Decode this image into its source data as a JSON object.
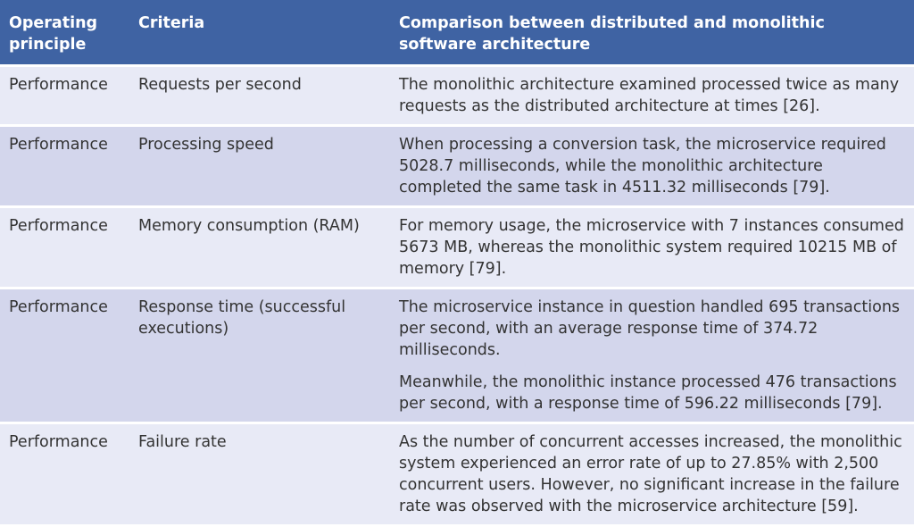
{
  "table": {
    "headers": [
      "Operating principle",
      "Criteria",
      "Comparison between distributed and monolithic software architecture"
    ],
    "rows": [
      {
        "principle": "Performance",
        "criteria": "Requests per second",
        "comparison": [
          "The monolithic architecture examined processed twice as many requests as the distributed architecture at times [26]."
        ]
      },
      {
        "principle": "Performance",
        "criteria": "Processing speed",
        "comparison": [
          "When processing a conversion task, the microservice required 5028.7 milliseconds, while the monolithic architecture completed the same task in 4511.32 milliseconds [79]."
        ]
      },
      {
        "principle": "Performance",
        "criteria": "Memory consumption (RAM)",
        "comparison": [
          "For memory usage, the microservice with 7 instances consumed 5673 MB, whereas the monolithic system required 10215 MB of memory [79]."
        ]
      },
      {
        "principle": "Performance",
        "criteria": "Response time (successful executions)",
        "comparison": [
          "The microservice instance in question handled 695 transactions per second, with an average response time of 374.72 milliseconds.",
          "Meanwhile, the monolithic instance processed 476 transactions per second, with a response time of 596.22 milliseconds [79]."
        ]
      },
      {
        "principle": "Performance",
        "criteria": "Failure rate",
        "comparison": [
          "As the number of concurrent accesses increased, the monolithic system experienced an error rate of up to 27.85% with 2,500 concurrent users. However, no significant increase in the failure rate was observed with the microservice architecture [59]."
        ]
      }
    ]
  }
}
